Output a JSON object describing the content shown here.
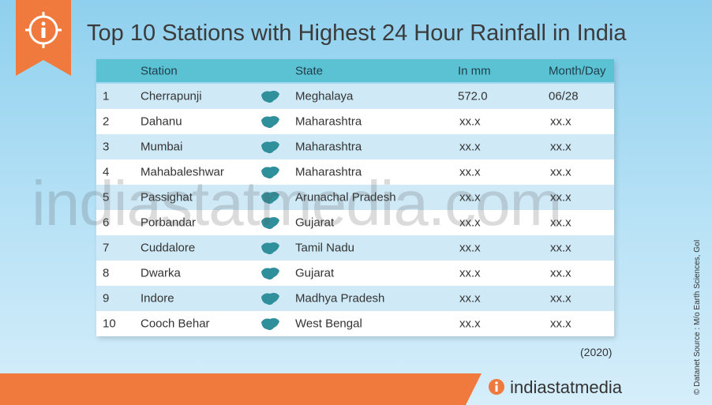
{
  "header": {
    "title": "Top 10 Stations with Highest 24 Hour  Rainfall in India"
  },
  "table": {
    "columns": [
      "Station",
      "State",
      "In mm",
      "Month/Day"
    ],
    "rows": [
      [
        "1",
        "Cherrapunji",
        "Meghalaya",
        "572.0",
        "06/28"
      ],
      [
        "2",
        "Dahanu",
        "Maharashtra",
        "xx.x",
        "xx.x"
      ],
      [
        "3",
        "Mumbai",
        "Maharashtra",
        "xx.x",
        "xx.x"
      ],
      [
        "4",
        "Mahabaleshwar",
        "Maharashtra",
        "xx.x",
        "xx.x"
      ],
      [
        "5",
        "Passighat",
        "Arunachal Pradesh",
        "xx.x",
        "xx.x"
      ],
      [
        "6",
        "Porbandar",
        "Gujarat",
        "xx.x",
        "xx.x"
      ],
      [
        "7",
        "Cuddalore",
        "Tamil Nadu",
        "xx.x",
        "xx.x"
      ],
      [
        "8",
        "Dwarka",
        "Gujarat",
        "xx.x",
        "xx.x"
      ],
      [
        "9",
        "Indore",
        "Madhya Pradesh",
        "xx.x",
        "xx.x"
      ],
      [
        "10",
        "Cooch Behar",
        "West Bengal",
        "xx.x",
        "xx.x"
      ]
    ]
  },
  "year": "(2020)",
  "watermark": "indiastatmedia.com",
  "brand": "indiastatmedia",
  "source": "© Datanet  Source : M/o Earth Sciences, GoI"
}
